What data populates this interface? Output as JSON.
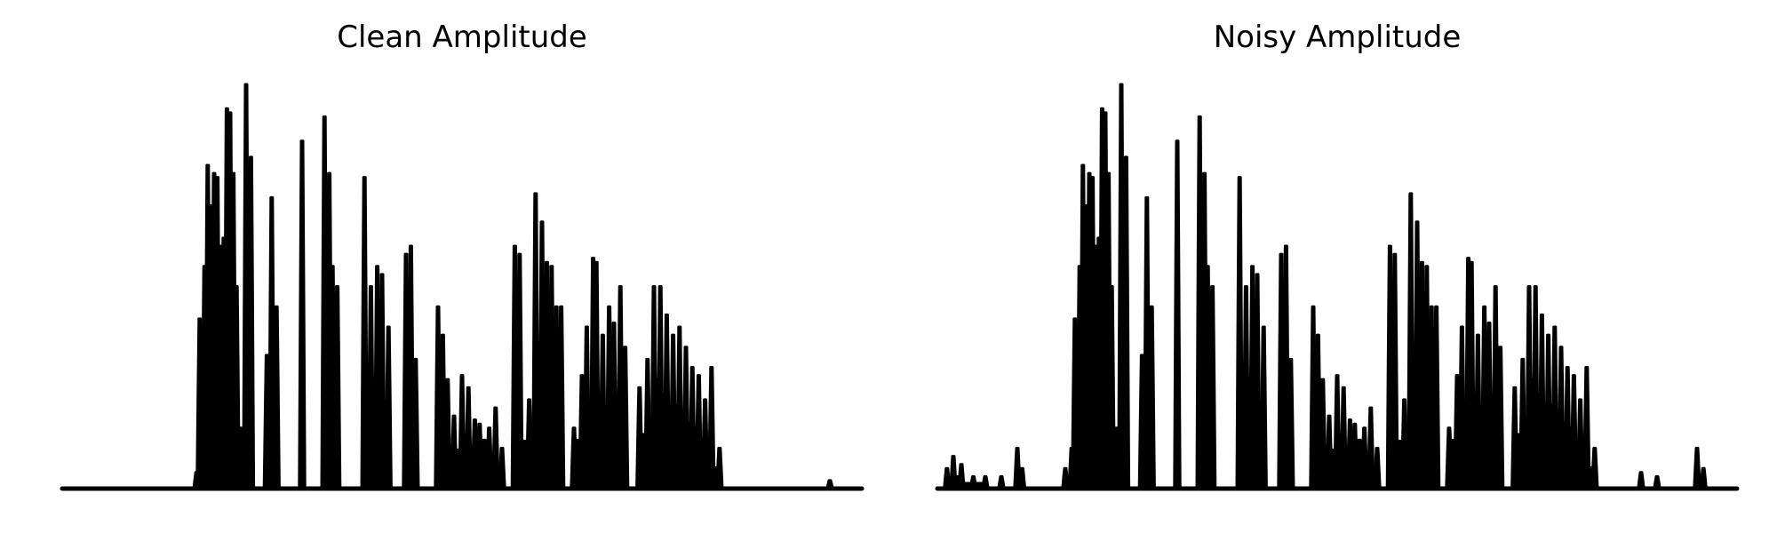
{
  "chart_data": [
    {
      "type": "area",
      "title": "Clean Amplitude",
      "axis_visible": false,
      "grid": false,
      "color": "#000000",
      "ylim": [
        0,
        1
      ],
      "peaks": [
        [
          0.168,
          0.04
        ],
        [
          0.172,
          0.42
        ],
        [
          0.178,
          0.55
        ],
        [
          0.182,
          0.8
        ],
        [
          0.186,
          0.7
        ],
        [
          0.19,
          0.78
        ],
        [
          0.194,
          0.77
        ],
        [
          0.198,
          0.6
        ],
        [
          0.202,
          0.62
        ],
        [
          0.206,
          0.94
        ],
        [
          0.21,
          0.93
        ],
        [
          0.214,
          0.78
        ],
        [
          0.218,
          0.5
        ],
        [
          0.224,
          0.15
        ],
        [
          0.23,
          1.0
        ],
        [
          0.236,
          0.82
        ],
        [
          0.256,
          0.33
        ],
        [
          0.262,
          0.72
        ],
        [
          0.268,
          0.45
        ],
        [
          0.3,
          0.86
        ],
        [
          0.328,
          0.92
        ],
        [
          0.334,
          0.78
        ],
        [
          0.338,
          0.55
        ],
        [
          0.344,
          0.5
        ],
        [
          0.378,
          0.77
        ],
        [
          0.386,
          0.5
        ],
        [
          0.394,
          0.55
        ],
        [
          0.4,
          0.53
        ],
        [
          0.408,
          0.4
        ],
        [
          0.43,
          0.58
        ],
        [
          0.436,
          0.6
        ],
        [
          0.442,
          0.32
        ],
        [
          0.47,
          0.45
        ],
        [
          0.476,
          0.38
        ],
        [
          0.482,
          0.27
        ],
        [
          0.49,
          0.18
        ],
        [
          0.5,
          0.28
        ],
        [
          0.508,
          0.25
        ],
        [
          0.516,
          0.17
        ],
        [
          0.522,
          0.16
        ],
        [
          0.528,
          0.12
        ],
        [
          0.534,
          0.15
        ],
        [
          0.542,
          0.2
        ],
        [
          0.55,
          0.1
        ],
        [
          0.566,
          0.6
        ],
        [
          0.572,
          0.58
        ],
        [
          0.584,
          0.22
        ],
        [
          0.592,
          0.73
        ],
        [
          0.6,
          0.66
        ],
        [
          0.606,
          0.56
        ],
        [
          0.612,
          0.55
        ],
        [
          0.618,
          0.45
        ],
        [
          0.624,
          0.45
        ],
        [
          0.64,
          0.15
        ],
        [
          0.644,
          0.12
        ],
        [
          0.65,
          0.28
        ],
        [
          0.656,
          0.4
        ],
        [
          0.664,
          0.57
        ],
        [
          0.668,
          0.56
        ],
        [
          0.676,
          0.38
        ],
        [
          0.684,
          0.45
        ],
        [
          0.69,
          0.41
        ],
        [
          0.698,
          0.5
        ],
        [
          0.704,
          0.35
        ],
        [
          0.722,
          0.25
        ],
        [
          0.732,
          0.32
        ],
        [
          0.74,
          0.5
        ],
        [
          0.748,
          0.5
        ],
        [
          0.756,
          0.43
        ],
        [
          0.764,
          0.38
        ],
        [
          0.772,
          0.4
        ],
        [
          0.78,
          0.35
        ],
        [
          0.788,
          0.3
        ],
        [
          0.796,
          0.28
        ],
        [
          0.804,
          0.22
        ],
        [
          0.812,
          0.3
        ],
        [
          0.822,
          0.1
        ],
        [
          0.96,
          0.02
        ]
      ]
    },
    {
      "type": "area",
      "title": "Noisy Amplitude",
      "axis_visible": false,
      "grid": false,
      "color": "#000000",
      "ylim": [
        0,
        1
      ],
      "peaks": [
        [
          0.012,
          0.05
        ],
        [
          0.02,
          0.08
        ],
        [
          0.03,
          0.06
        ],
        [
          0.045,
          0.03
        ],
        [
          0.06,
          0.03
        ],
        [
          0.08,
          0.03
        ],
        [
          0.1,
          0.1
        ],
        [
          0.106,
          0.05
        ],
        [
          0.16,
          0.05
        ],
        [
          0.168,
          0.1
        ],
        [
          0.172,
          0.42
        ],
        [
          0.178,
          0.55
        ],
        [
          0.182,
          0.8
        ],
        [
          0.186,
          0.7
        ],
        [
          0.19,
          0.78
        ],
        [
          0.194,
          0.77
        ],
        [
          0.198,
          0.6
        ],
        [
          0.202,
          0.62
        ],
        [
          0.206,
          0.94
        ],
        [
          0.21,
          0.93
        ],
        [
          0.214,
          0.78
        ],
        [
          0.218,
          0.5
        ],
        [
          0.224,
          0.15
        ],
        [
          0.23,
          1.0
        ],
        [
          0.236,
          0.82
        ],
        [
          0.256,
          0.33
        ],
        [
          0.262,
          0.72
        ],
        [
          0.268,
          0.45
        ],
        [
          0.3,
          0.86
        ],
        [
          0.328,
          0.92
        ],
        [
          0.334,
          0.78
        ],
        [
          0.338,
          0.55
        ],
        [
          0.344,
          0.5
        ],
        [
          0.378,
          0.77
        ],
        [
          0.386,
          0.5
        ],
        [
          0.394,
          0.55
        ],
        [
          0.4,
          0.53
        ],
        [
          0.408,
          0.4
        ],
        [
          0.43,
          0.58
        ],
        [
          0.436,
          0.6
        ],
        [
          0.442,
          0.32
        ],
        [
          0.47,
          0.45
        ],
        [
          0.476,
          0.38
        ],
        [
          0.482,
          0.27
        ],
        [
          0.49,
          0.18
        ],
        [
          0.5,
          0.28
        ],
        [
          0.508,
          0.25
        ],
        [
          0.516,
          0.17
        ],
        [
          0.522,
          0.16
        ],
        [
          0.528,
          0.12
        ],
        [
          0.534,
          0.15
        ],
        [
          0.542,
          0.2
        ],
        [
          0.55,
          0.1
        ],
        [
          0.566,
          0.6
        ],
        [
          0.572,
          0.58
        ],
        [
          0.584,
          0.22
        ],
        [
          0.592,
          0.73
        ],
        [
          0.6,
          0.66
        ],
        [
          0.606,
          0.56
        ],
        [
          0.612,
          0.55
        ],
        [
          0.618,
          0.45
        ],
        [
          0.624,
          0.45
        ],
        [
          0.64,
          0.15
        ],
        [
          0.644,
          0.12
        ],
        [
          0.65,
          0.28
        ],
        [
          0.656,
          0.4
        ],
        [
          0.664,
          0.57
        ],
        [
          0.668,
          0.56
        ],
        [
          0.676,
          0.38
        ],
        [
          0.684,
          0.45
        ],
        [
          0.69,
          0.41
        ],
        [
          0.698,
          0.5
        ],
        [
          0.704,
          0.35
        ],
        [
          0.722,
          0.25
        ],
        [
          0.732,
          0.32
        ],
        [
          0.74,
          0.5
        ],
        [
          0.748,
          0.5
        ],
        [
          0.756,
          0.43
        ],
        [
          0.764,
          0.38
        ],
        [
          0.772,
          0.4
        ],
        [
          0.78,
          0.35
        ],
        [
          0.788,
          0.3
        ],
        [
          0.796,
          0.28
        ],
        [
          0.804,
          0.22
        ],
        [
          0.812,
          0.3
        ],
        [
          0.822,
          0.1
        ],
        [
          0.88,
          0.04
        ],
        [
          0.9,
          0.03
        ],
        [
          0.95,
          0.1
        ],
        [
          0.958,
          0.05
        ]
      ]
    }
  ]
}
